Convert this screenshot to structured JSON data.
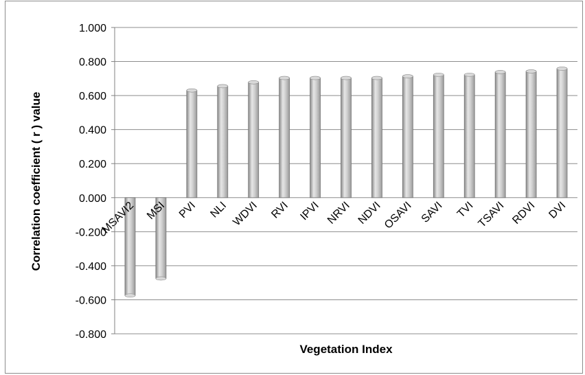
{
  "chart_data": {
    "type": "bar",
    "title": "",
    "xlabel": "Vegetation Index",
    "ylabel": "Correlation coefficient ( r ) value",
    "ylim": [
      -0.8,
      1.0
    ],
    "ytick_step": 0.2,
    "yticks": [
      "-0.800",
      "-0.600",
      "-0.400",
      "-0.200",
      "0.000",
      "0.200",
      "0.400",
      "0.600",
      "0.800",
      "1.000"
    ],
    "grid": true,
    "legend": "none",
    "categories": [
      "MSAVI2",
      "MSI",
      "PVI",
      "NLI",
      "WDVI",
      "RVI",
      "IPVI",
      "NRVI",
      "NDVI",
      "OSAVI",
      "SAVI",
      "TVI",
      "TSAVI",
      "RDVI",
      "DVI"
    ],
    "values": [
      -0.575,
      -0.475,
      0.63,
      0.655,
      0.678,
      0.703,
      0.703,
      0.703,
      0.703,
      0.713,
      0.722,
      0.722,
      0.738,
      0.742,
      0.758
    ],
    "bar_color": "#c4c4c4"
  }
}
